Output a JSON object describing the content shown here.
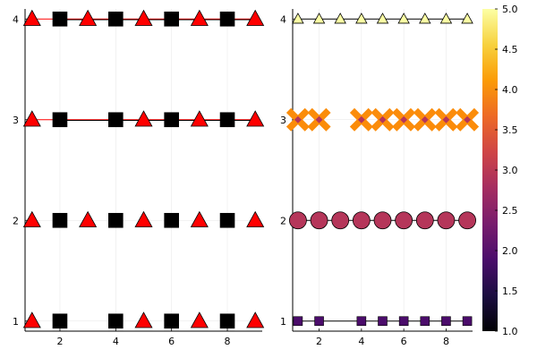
{
  "chart_data": [
    {
      "type": "scatter",
      "panel": "left",
      "x_ticks": [
        2,
        4,
        6,
        8
      ],
      "y_ticks": [
        1,
        2,
        3,
        4
      ],
      "xlim": [
        0.75,
        9.25
      ],
      "ylim": [
        0.9,
        4.1
      ],
      "grid": true,
      "legend": "none",
      "rows": [
        {
          "y": 1,
          "line": false,
          "points": [
            [
              1,
              "triangle"
            ],
            [
              2,
              "square"
            ],
            [
              4,
              "square"
            ],
            [
              5,
              "triangle"
            ],
            [
              6,
              "square"
            ],
            [
              7,
              "triangle"
            ],
            [
              8,
              "square"
            ],
            [
              9,
              "triangle"
            ]
          ]
        },
        {
          "y": 2,
          "line": false,
          "points": [
            [
              1,
              "triangle"
            ],
            [
              2,
              "square"
            ],
            [
              3,
              "triangle"
            ],
            [
              4,
              "square"
            ],
            [
              5,
              "triangle"
            ],
            [
              6,
              "square"
            ],
            [
              7,
              "triangle"
            ],
            [
              8,
              "square"
            ],
            [
              9,
              "triangle"
            ]
          ]
        },
        {
          "y": 3,
          "line": true,
          "points": [
            [
              1,
              "triangle"
            ],
            [
              2,
              "square"
            ],
            [
              4,
              "square"
            ],
            [
              5,
              "triangle"
            ],
            [
              6,
              "square"
            ],
            [
              7,
              "triangle"
            ],
            [
              8,
              "square"
            ],
            [
              9,
              "triangle"
            ]
          ]
        },
        {
          "y": 4,
          "line": true,
          "points": [
            [
              1,
              "triangle"
            ],
            [
              2,
              "square"
            ],
            [
              3,
              "triangle"
            ],
            [
              4,
              "square"
            ],
            [
              5,
              "triangle"
            ],
            [
              6,
              "square"
            ],
            [
              7,
              "triangle"
            ],
            [
              8,
              "square"
            ],
            [
              9,
              "triangle"
            ]
          ]
        }
      ],
      "colors": {
        "triangle": "#ff0000",
        "square": "#000000",
        "line_red": "#ff0000",
        "line_black": "#000000"
      }
    },
    {
      "type": "scatter",
      "panel": "right",
      "x_ticks": [
        2,
        4,
        6,
        8
      ],
      "y_ticks": [
        1,
        2,
        3,
        4
      ],
      "xlim": [
        0.75,
        9.25
      ],
      "ylim": [
        0.9,
        4.1
      ],
      "grid": true,
      "legend": "none",
      "rows": [
        {
          "y": 1,
          "value": 1.5,
          "marker": "square",
          "line": true,
          "x": [
            1,
            2,
            4,
            5,
            6,
            7,
            8,
            9
          ],
          "color": "#4b0c6b"
        },
        {
          "y": 2,
          "value": 3.0,
          "marker": "circle",
          "line": true,
          "x": [
            1,
            2,
            3,
            4,
            5,
            6,
            7,
            8,
            9
          ],
          "color": "#b5365a"
        },
        {
          "y": 3,
          "value": 4.0,
          "marker": "cross",
          "line": false,
          "x": [
            1,
            2,
            4,
            5,
            6,
            7,
            8,
            9
          ],
          "color": "#fb8c0a",
          "center_color": "#b5365a"
        },
        {
          "y": 4,
          "value": 5.0,
          "marker": "triangle",
          "line": true,
          "x": [
            1,
            2,
            3,
            4,
            5,
            6,
            7,
            8,
            9
          ],
          "color": "#fcffa4"
        }
      ],
      "colorbar": {
        "colormap": "inferno",
        "range": [
          1.0,
          5.0
        ],
        "tick_labels": [
          "1.0",
          "1.5",
          "2.0",
          "2.5",
          "3.0",
          "3.5",
          "4.0",
          "4.5",
          "5.0"
        ],
        "stops": [
          "#000004",
          "#1b0c41",
          "#4a0c6b",
          "#781c6d",
          "#a52c60",
          "#cf4446",
          "#ed6925",
          "#fb9b06",
          "#f7d13d",
          "#fcffa4"
        ]
      }
    }
  ]
}
